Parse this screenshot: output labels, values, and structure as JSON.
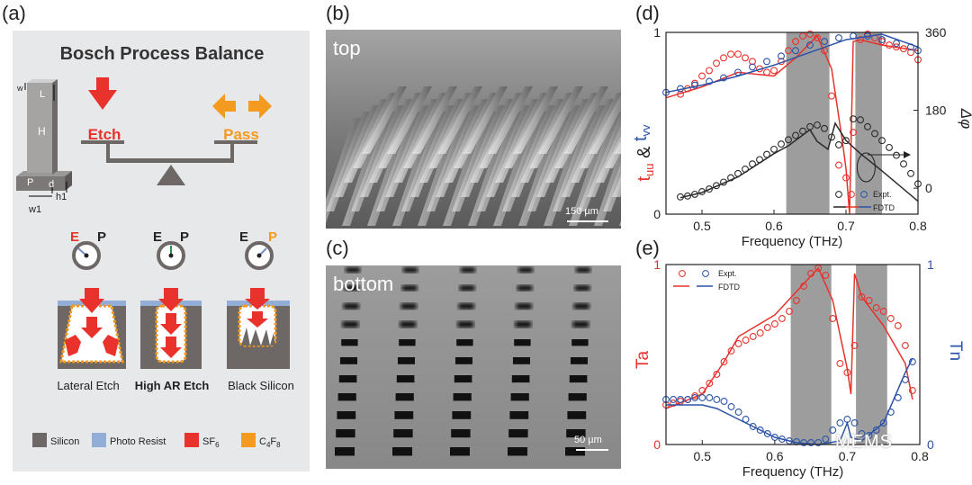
{
  "panel_labels": {
    "a": "(a)",
    "b": "(b)",
    "c": "(c)",
    "d": "(d)",
    "e": "(e)"
  },
  "panel_a": {
    "title": "Bosch Process Balance",
    "etch": "Etch",
    "pass": "Pass",
    "dims": {
      "w": "w",
      "L": "L",
      "H": "H",
      "P": "P",
      "d": "d",
      "h1": "h1",
      "w1": "w1"
    },
    "gauge_letters": {
      "e": "E",
      "p": "P"
    },
    "cases": [
      "Lateral Etch",
      "High AR Etch",
      "Black Silicon"
    ],
    "legend": {
      "silicon": "Silicon",
      "resist": "Photo Resist",
      "sf6": "SF",
      "sf6_sub": "6",
      "c4f8_c": "C",
      "c4f8_4": "4",
      "c4f8_f": "F",
      "c4f8_8": "8"
    },
    "colors": {
      "etch": "#e8322b",
      "pass": "#f39a1f",
      "silicon": "#6d6866",
      "resist": "#92add6",
      "panel_bg": "#e7e8ea"
    }
  },
  "panel_b": {
    "tag": "top",
    "scale": "150 µm"
  },
  "panel_c": {
    "tag": "bottom",
    "scale": "50 µm"
  },
  "watermark": "MEMS",
  "chart_data": [
    {
      "id": "d",
      "type": "scatter",
      "xlabel": "Frequency (THz)",
      "ylabel_left_parts": [
        "t",
        "uu",
        " & ",
        "t",
        "vv"
      ],
      "ylabel_right": "Δφ",
      "xlim": [
        0.45,
        0.8
      ],
      "ylim": [
        0,
        1
      ],
      "ylim_right": [
        -60,
        360
      ],
      "xticks": [
        "0.5",
        "0.6",
        "0.7",
        "0.8"
      ],
      "yticks_left": [
        "0",
        "1"
      ],
      "yticks_right": [
        "0",
        "180",
        "360"
      ],
      "shaded_bands": [
        [
          0.617,
          0.677
        ],
        [
          0.713,
          0.75
        ]
      ],
      "legend": {
        "expt": "Expt.",
        "fdtd": "FDTD"
      },
      "series": [
        {
          "name": "t_uu",
          "color": "#e8322b",
          "axis": "left",
          "expt_x": [
            0.47,
            0.48,
            0.49,
            0.5,
            0.51,
            0.52,
            0.53,
            0.54,
            0.55,
            0.56,
            0.57,
            0.58,
            0.59,
            0.6,
            0.61,
            0.62,
            0.63,
            0.64,
            0.65,
            0.66,
            0.67,
            0.68,
            0.69,
            0.7,
            0.71,
            0.72,
            0.73,
            0.74,
            0.75,
            0.76,
            0.77,
            0.78,
            0.79,
            0.8
          ],
          "expt_y": [
            0.66,
            0.69,
            0.72,
            0.76,
            0.79,
            0.83,
            0.86,
            0.88,
            0.88,
            0.86,
            0.84,
            0.8,
            0.78,
            0.79,
            0.84,
            0.9,
            0.95,
            0.98,
            0.99,
            0.97,
            0.9,
            0.65,
            0.27,
            0.2,
            0.45,
            0.96,
            0.99,
            0.97,
            0.95,
            0.93,
            0.92,
            0.91,
            0.89,
            0.85
          ],
          "fdtd_x": [
            0.45,
            0.5,
            0.55,
            0.6,
            0.63,
            0.66,
            0.68,
            0.695,
            0.7,
            0.705,
            0.71,
            0.72,
            0.75,
            0.8
          ],
          "fdtd_y": [
            0.64,
            0.7,
            0.78,
            0.76,
            0.86,
            0.98,
            0.8,
            0.4,
            0.25,
            0.0,
            0.95,
            0.96,
            0.93,
            0.9
          ]
        },
        {
          "name": "t_vv",
          "color": "#2b53a8",
          "axis": "left",
          "expt_x": [
            0.45,
            0.47,
            0.49,
            0.51,
            0.53,
            0.55,
            0.57,
            0.59,
            0.61,
            0.63,
            0.65,
            0.67,
            0.69,
            0.71,
            0.73,
            0.75,
            0.77,
            0.79,
            0.8
          ],
          "expt_y": [
            0.67,
            0.69,
            0.71,
            0.73,
            0.75,
            0.78,
            0.81,
            0.84,
            0.87,
            0.9,
            0.93,
            0.95,
            0.97,
            0.98,
            0.98,
            0.96,
            0.94,
            0.92,
            0.9
          ],
          "fdtd_x": [
            0.45,
            0.5,
            0.55,
            0.6,
            0.65,
            0.7,
            0.75,
            0.8
          ],
          "fdtd_y": [
            0.67,
            0.71,
            0.76,
            0.82,
            0.89,
            0.96,
            0.99,
            0.92
          ]
        },
        {
          "name": "phase",
          "color": "#2b2b2b",
          "axis": "right",
          "expt_x": [
            0.47,
            0.48,
            0.49,
            0.5,
            0.51,
            0.52,
            0.53,
            0.54,
            0.55,
            0.56,
            0.57,
            0.58,
            0.59,
            0.6,
            0.61,
            0.62,
            0.63,
            0.64,
            0.65,
            0.66,
            0.67,
            0.68,
            0.69,
            0.7,
            0.71,
            0.72,
            0.73,
            0.74,
            0.75,
            0.76,
            0.77,
            0.78,
            0.79,
            0.8
          ],
          "expt_y": [
            -20,
            -18,
            -14,
            -8,
            -2,
            6,
            14,
            24,
            34,
            44,
            56,
            66,
            78,
            90,
            102,
            112,
            122,
            132,
            142,
            146,
            138,
            118,
            100,
            110,
            160,
            158,
            142,
            126,
            110,
            94,
            76,
            56,
            34,
            10
          ],
          "fdtd_x": [
            0.47,
            0.5,
            0.55,
            0.6,
            0.62,
            0.65,
            0.66,
            0.675,
            0.685,
            0.7,
            0.72,
            0.75,
            0.8
          ],
          "fdtd_y": [
            -22,
            -10,
            26,
            80,
            98,
            135,
            108,
            90,
            150,
            110,
            80,
            40,
            -30
          ]
        }
      ]
    },
    {
      "id": "e",
      "type": "scatter",
      "xlabel": "Frequency (THz)",
      "ylabel_left": "Ta",
      "ylabel_right": "Tn",
      "xlim": [
        0.45,
        0.8
      ],
      "ylim": [
        0,
        1
      ],
      "xticks": [
        "0.5",
        "0.6",
        "0.7",
        "0.8"
      ],
      "yticks_left": [
        "0",
        "1"
      ],
      "yticks_right": [
        "0",
        "1"
      ],
      "shaded_bands": [
        [
          0.622,
          0.678
        ],
        [
          0.712,
          0.755
        ]
      ],
      "legend": {
        "expt": "Expt.",
        "fdtd": "FDTD"
      },
      "series": [
        {
          "name": "Ta",
          "color": "#e8322b",
          "axis": "left",
          "expt_x": [
            0.45,
            0.46,
            0.47,
            0.48,
            0.49,
            0.5,
            0.51,
            0.52,
            0.53,
            0.54,
            0.55,
            0.56,
            0.57,
            0.58,
            0.59,
            0.6,
            0.61,
            0.62,
            0.63,
            0.64,
            0.65,
            0.66,
            0.67,
            0.68,
            0.69,
            0.7,
            0.71,
            0.72,
            0.73,
            0.74,
            0.75,
            0.76,
            0.77,
            0.78,
            0.79
          ],
          "expt_y": [
            0.22,
            0.23,
            0.24,
            0.25,
            0.27,
            0.3,
            0.34,
            0.39,
            0.46,
            0.52,
            0.56,
            0.58,
            0.6,
            0.62,
            0.65,
            0.67,
            0.7,
            0.74,
            0.8,
            0.88,
            0.95,
            0.98,
            0.94,
            0.7,
            0.45,
            0.4,
            0.55,
            0.82,
            0.8,
            0.76,
            0.74,
            0.7,
            0.66,
            0.55,
            0.3
          ],
          "fdtd_x": [
            0.45,
            0.5,
            0.53,
            0.55,
            0.6,
            0.63,
            0.66,
            0.68,
            0.7,
            0.705,
            0.71,
            0.72,
            0.75,
            0.78,
            0.79
          ],
          "fdtd_y": [
            0.2,
            0.28,
            0.46,
            0.6,
            0.72,
            0.85,
            0.98,
            0.8,
            0.42,
            0.28,
            0.95,
            0.82,
            0.66,
            0.45,
            0.25
          ]
        },
        {
          "name": "Tn",
          "color": "#2b53a8",
          "axis": "right",
          "expt_x": [
            0.45,
            0.46,
            0.47,
            0.48,
            0.49,
            0.5,
            0.51,
            0.52,
            0.53,
            0.54,
            0.55,
            0.56,
            0.57,
            0.58,
            0.59,
            0.6,
            0.61,
            0.62,
            0.63,
            0.64,
            0.65,
            0.66,
            0.67,
            0.68,
            0.69,
            0.7,
            0.71,
            0.72,
            0.73,
            0.74,
            0.75,
            0.76,
            0.77,
            0.78,
            0.79
          ],
          "expt_y": [
            0.25,
            0.25,
            0.25,
            0.25,
            0.26,
            0.26,
            0.26,
            0.25,
            0.24,
            0.21,
            0.18,
            0.14,
            0.1,
            0.08,
            0.06,
            0.04,
            0.03,
            0.02,
            0.015,
            0.01,
            0.01,
            0.01,
            0.03,
            0.08,
            0.12,
            0.14,
            0.12,
            0.06,
            0.05,
            0.08,
            0.12,
            0.18,
            0.26,
            0.36,
            0.46
          ],
          "fdtd_x": [
            0.45,
            0.5,
            0.52,
            0.55,
            0.6,
            0.63,
            0.66,
            0.69,
            0.7,
            0.705,
            0.72,
            0.75,
            0.78,
            0.79
          ],
          "fdtd_y": [
            0.22,
            0.22,
            0.2,
            0.14,
            0.04,
            0.01,
            0.0,
            0.02,
            0.12,
            0.04,
            0.02,
            0.12,
            0.4,
            0.48
          ]
        }
      ]
    }
  ]
}
